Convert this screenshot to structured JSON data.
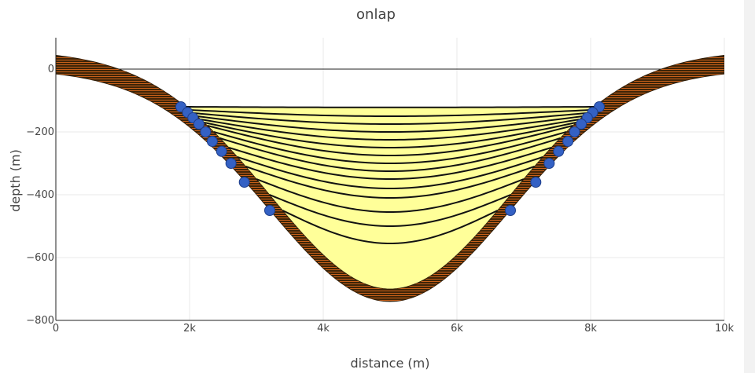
{
  "chart_data": {
    "type": "line",
    "title": "onlap",
    "xlabel": "distance (m)",
    "ylabel": "depth (m)",
    "xlim": [
      0,
      10000
    ],
    "ylim": [
      -800,
      100
    ],
    "x_ticks": [
      0,
      2000,
      4000,
      6000,
      8000,
      10000
    ],
    "x_tick_labels": [
      "0",
      "2k",
      "4k",
      "6k",
      "8k",
      "10k"
    ],
    "y_ticks": [
      0,
      -200,
      -400,
      -600,
      -800
    ],
    "y_tick_labels": [
      "0",
      "−200",
      "−400",
      "−600",
      "−800"
    ],
    "grid": true,
    "basin": {
      "shape": "gaussian",
      "center_x": 5000,
      "top_surface": {
        "edge_depth": 60,
        "min_depth": -700
      },
      "bottom_surface": {
        "edge_depth": 0,
        "min_depth": -740
      }
    },
    "sea_level": 0,
    "fill_top_depth": -120,
    "horizon_depths": [
      -120,
      -130,
      -140,
      -150,
      -160,
      -170,
      -180,
      -200,
      -220,
      -250,
      -280,
      -310,
      -350,
      -400,
      -450
    ],
    "horizon_center_depths": [
      -122,
      -150,
      -175,
      -200,
      -225,
      -250,
      -275,
      -300,
      -325,
      -350,
      -380,
      -410,
      -455,
      -500,
      -555
    ],
    "onlap_points": {
      "left": [
        {
          "x": 1870,
          "y": -120
        },
        {
          "x": 1970,
          "y": -138
        },
        {
          "x": 2050,
          "y": -155
        },
        {
          "x": 2140,
          "y": -175
        },
        {
          "x": 2240,
          "y": -200
        },
        {
          "x": 2340,
          "y": -230
        },
        {
          "x": 2480,
          "y": -262
        },
        {
          "x": 2620,
          "y": -300
        },
        {
          "x": 2820,
          "y": -360
        },
        {
          "x": 3200,
          "y": -450
        }
      ],
      "right": [
        {
          "x": 8130,
          "y": -120
        },
        {
          "x": 8030,
          "y": -138
        },
        {
          "x": 7950,
          "y": -155
        },
        {
          "x": 7860,
          "y": -175
        },
        {
          "x": 7760,
          "y": -200
        },
        {
          "x": 7660,
          "y": -230
        },
        {
          "x": 7520,
          "y": -262
        },
        {
          "x": 7380,
          "y": -300
        },
        {
          "x": 7180,
          "y": -360
        },
        {
          "x": 6800,
          "y": -450
        }
      ]
    },
    "colors": {
      "sediment_fill": "#ffff99",
      "basement_fill": "#3d2407",
      "basement_stripe": "#c8601a",
      "horizon_line": "#111111",
      "marker_fill": "#3461c4",
      "marker_stroke": "#1e3e8a",
      "grid": "#e9e9e9",
      "sea_level_line": "#222222"
    }
  }
}
